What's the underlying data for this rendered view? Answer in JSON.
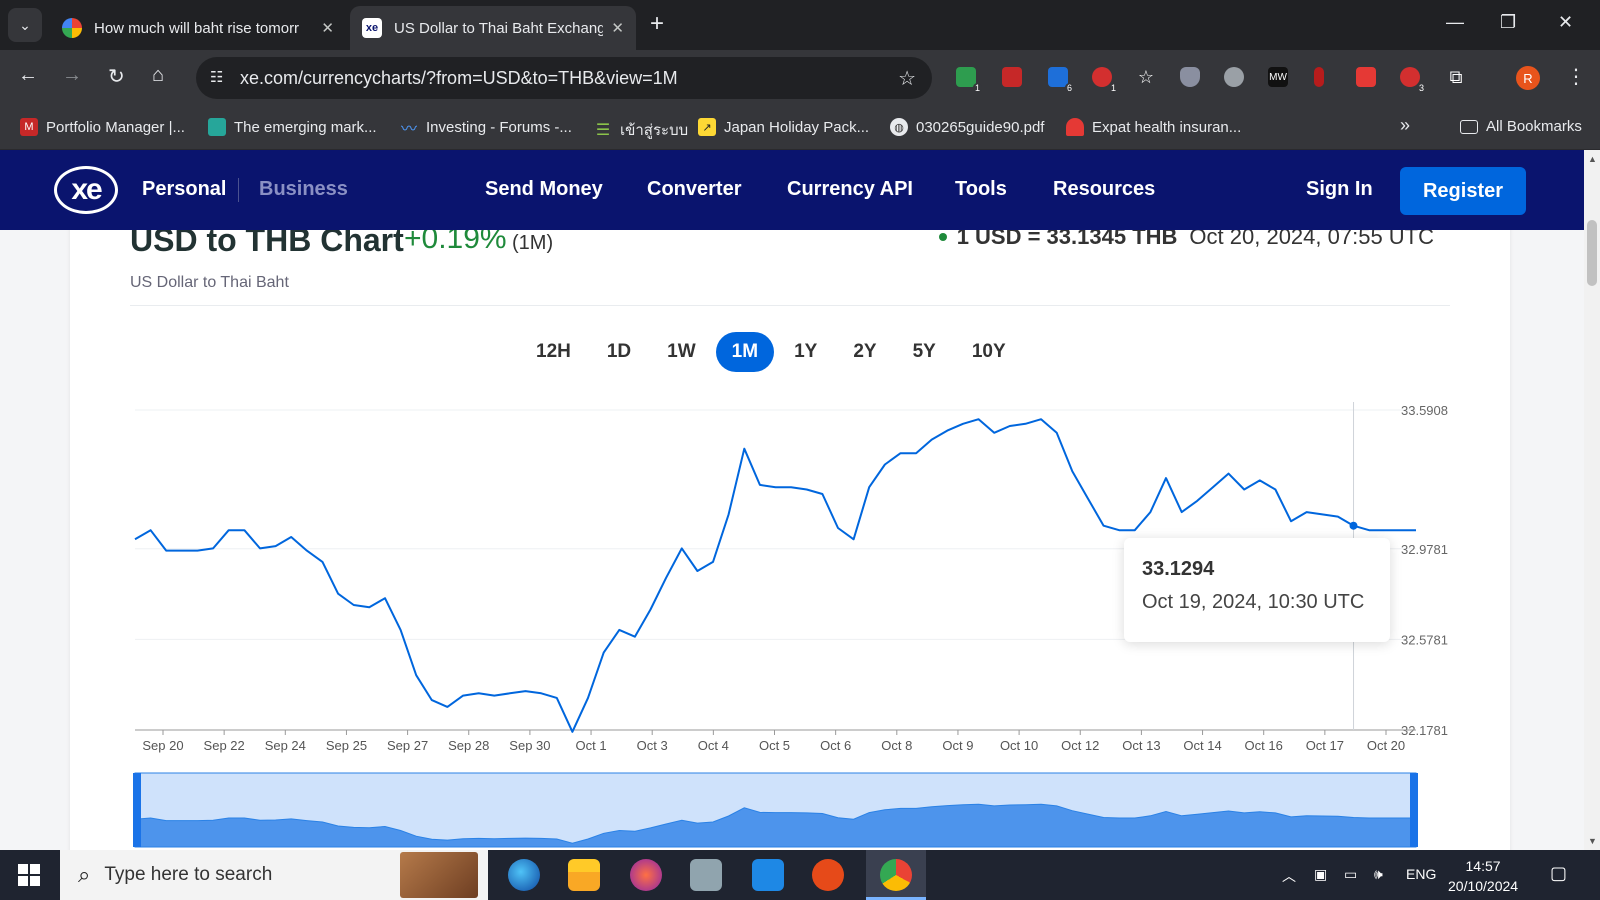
{
  "browser": {
    "tabs": [
      {
        "title": "How much will baht rise tomorr",
        "active": false
      },
      {
        "title": "US Dollar to Thai Baht Exchange",
        "active": true
      }
    ],
    "url": "xe.com/currencycharts/?from=USD&to=THB&view=1M",
    "extension_badges": [
      "1",
      "6",
      "1",
      "3"
    ],
    "profile_initial": "R",
    "bookmarks": [
      {
        "label": "Portfolio Manager |..."
      },
      {
        "label": "The emerging mark..."
      },
      {
        "label": "Investing - Forums -..."
      },
      {
        "label": "เข้าสู่ระบบ"
      },
      {
        "label": "Japan Holiday Pack..."
      },
      {
        "label": "030265guide90.pdf"
      },
      {
        "label": "Expat health insuran..."
      }
    ],
    "more_bookmarks": "»",
    "all_bookmarks": "All Bookmarks"
  },
  "xe": {
    "logo": "xe",
    "segments": {
      "personal": "Personal",
      "business": "Business"
    },
    "nav": [
      "Send Money",
      "Converter",
      "Currency API",
      "Tools",
      "Resources"
    ],
    "sign_in": "Sign In",
    "register": "Register"
  },
  "header": {
    "title": "USD to THB Chart",
    "change": "+0.19%",
    "period": "(1M)",
    "rate": "1 USD = 33.1345 THB",
    "timestamp": "Oct 20, 2024, 07:55 UTC",
    "subtitle": "US Dollar to Thai Baht"
  },
  "periods": [
    {
      "label": "12H",
      "active": false
    },
    {
      "label": "1D",
      "active": false
    },
    {
      "label": "1W",
      "active": false
    },
    {
      "label": "1M",
      "active": true
    },
    {
      "label": "1Y",
      "active": false
    },
    {
      "label": "2Y",
      "active": false
    },
    {
      "label": "5Y",
      "active": false
    },
    {
      "label": "10Y",
      "active": false
    }
  ],
  "chart_data": {
    "type": "line",
    "ylim": [
      32.1781,
      33.5908
    ],
    "y_ticks": [
      "33.5908",
      "32.9781",
      "32.5781",
      "32.1781"
    ],
    "x_ticks": [
      "Sep 20",
      "Sep 22",
      "Sep 24",
      "Sep 25",
      "Sep 27",
      "Sep 28",
      "Sep 30",
      "Oct 1",
      "Oct 3",
      "Oct 4",
      "Oct 5",
      "Oct 6",
      "Oct 8",
      "Oct 9",
      "Oct 10",
      "Oct 12",
      "Oct 13",
      "Oct 14",
      "Oct 16",
      "Oct 17",
      "Oct 20"
    ],
    "series": [
      {
        "color": "#0066dd",
        "values": [
          33.02,
          33.06,
          32.97,
          32.97,
          32.97,
          32.98,
          33.06,
          33.06,
          32.98,
          32.99,
          33.03,
          32.97,
          32.92,
          32.78,
          32.73,
          32.72,
          32.76,
          32.62,
          32.42,
          32.31,
          32.28,
          32.33,
          32.34,
          32.33,
          32.34,
          32.35,
          32.34,
          32.32,
          32.17,
          32.32,
          32.52,
          32.62,
          32.59,
          32.71,
          32.85,
          32.98,
          32.88,
          32.92,
          33.13,
          33.42,
          33.26,
          33.25,
          33.25,
          33.24,
          33.22,
          33.07,
          33.02,
          33.25,
          33.35,
          33.4,
          33.4,
          33.46,
          33.5,
          33.53,
          33.55,
          33.49,
          33.52,
          33.53,
          33.55,
          33.49,
          33.32,
          33.2,
          33.08,
          33.06,
          33.06,
          33.14,
          33.29,
          33.14,
          33.19,
          33.25,
          33.31,
          33.24,
          33.28,
          33.24,
          33.1,
          33.14,
          33.13,
          33.12,
          33.08,
          33.06,
          33.06,
          33.06,
          33.06
        ]
      }
    ],
    "tooltip": {
      "value": "33.1294",
      "date": "Oct 19, 2024, 10:30 UTC"
    }
  },
  "taskbar": {
    "search_placeholder": "Type here to search",
    "language": "ENG",
    "time": "14:57",
    "date": "20/10/2024"
  }
}
